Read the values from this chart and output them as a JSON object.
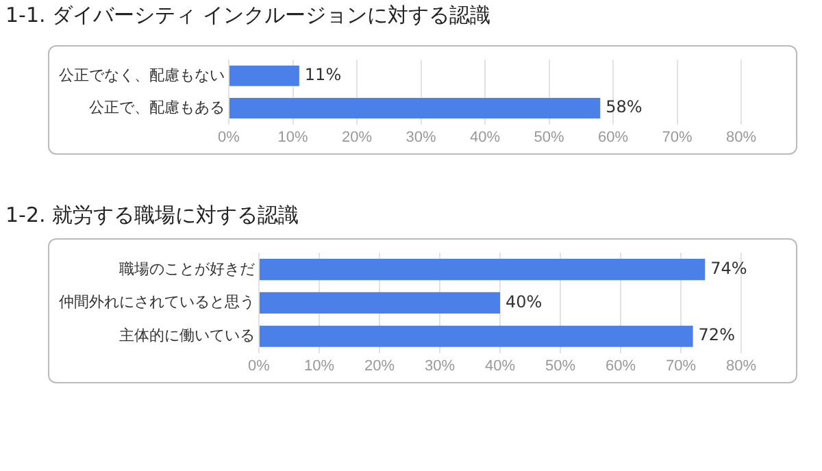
{
  "chart_data": [
    {
      "type": "bar",
      "orientation": "horizontal",
      "title": "1-1. ダイバーシティ インクルージョンに対する認識",
      "categories": [
        "公正でなく、配慮もない",
        "公正で、配慮もある"
      ],
      "values": [
        11,
        58
      ],
      "value_labels": [
        "11%",
        "58%"
      ],
      "color": "#4a80e8",
      "xlim": [
        0,
        80
      ],
      "xticks": [
        {
          "value": 0,
          "label": "0%"
        },
        {
          "value": 10,
          "label": "10%"
        },
        {
          "value": 20,
          "label": "20%"
        },
        {
          "value": 30,
          "label": "30%"
        },
        {
          "value": 40,
          "label": "40%"
        },
        {
          "value": 50,
          "label": "50%"
        },
        {
          "value": 60,
          "label": "60%"
        },
        {
          "value": 70,
          "label": "70%"
        },
        {
          "value": 80,
          "label": "80%"
        }
      ],
      "grid": "x"
    },
    {
      "type": "bar",
      "orientation": "horizontal",
      "title": "1-2. 就労する職場に対する認識",
      "categories": [
        "職場のことが好きだ",
        "仲間外れにされていると思う",
        "主体的に働いている"
      ],
      "values": [
        74,
        40,
        72
      ],
      "value_labels": [
        "74%",
        "40%",
        "72%"
      ],
      "color": "#4a80e8",
      "xlim": [
        0,
        80
      ],
      "xticks": [
        {
          "value": 0,
          "label": "0%"
        },
        {
          "value": 10,
          "label": "10%"
        },
        {
          "value": 20,
          "label": "20%"
        },
        {
          "value": 30,
          "label": "30%"
        },
        {
          "value": 40,
          "label": "40%"
        },
        {
          "value": 50,
          "label": "50%"
        },
        {
          "value": 60,
          "label": "60%"
        },
        {
          "value": 70,
          "label": "70%"
        },
        {
          "value": 80,
          "label": "80%"
        }
      ],
      "grid": "x"
    }
  ]
}
